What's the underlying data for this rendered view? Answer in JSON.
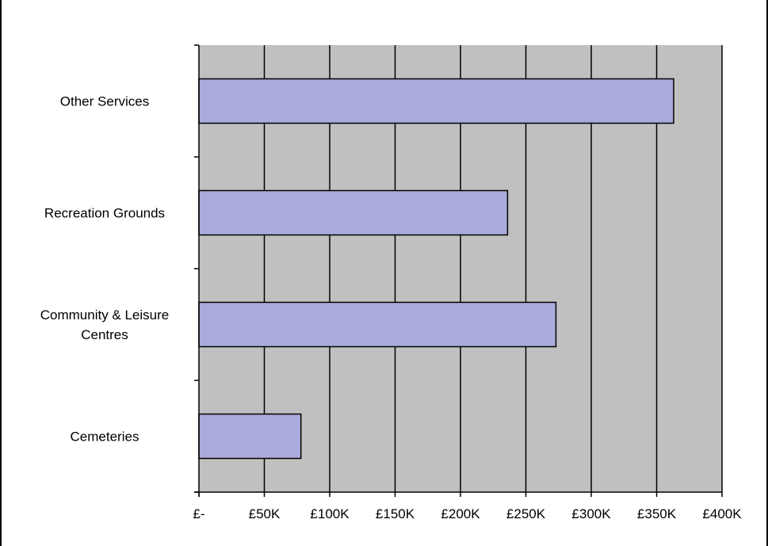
{
  "chart_data": {
    "type": "bar",
    "orientation": "horizontal",
    "title": "",
    "xlabel": "",
    "ylabel": "",
    "categories": [
      "Other Services",
      "Recreation Grounds",
      "Community & Leisure Centres",
      "Cemeteries"
    ],
    "category_label_lines": [
      [
        "Other Services"
      ],
      [
        "Recreation Grounds"
      ],
      [
        "Community & Leisure",
        "Centres"
      ],
      [
        "Cemeteries"
      ]
    ],
    "values": [
      363000,
      236000,
      273000,
      78000
    ],
    "xlim": [
      0,
      400000
    ],
    "xticks": [
      0,
      50000,
      100000,
      150000,
      200000,
      250000,
      300000,
      350000,
      400000
    ],
    "xtick_labels": [
      "£-",
      "£50K",
      "£100K",
      "£150K",
      "£200K",
      "£250K",
      "£300K",
      "£350K",
      "£400K"
    ],
    "grid": "vertical",
    "legend": "none",
    "colors": {
      "bar_fill": "#aaaadb",
      "bar_stroke": "#000000",
      "plot_background": "#c0c0c0",
      "gridline": "#000000"
    }
  }
}
